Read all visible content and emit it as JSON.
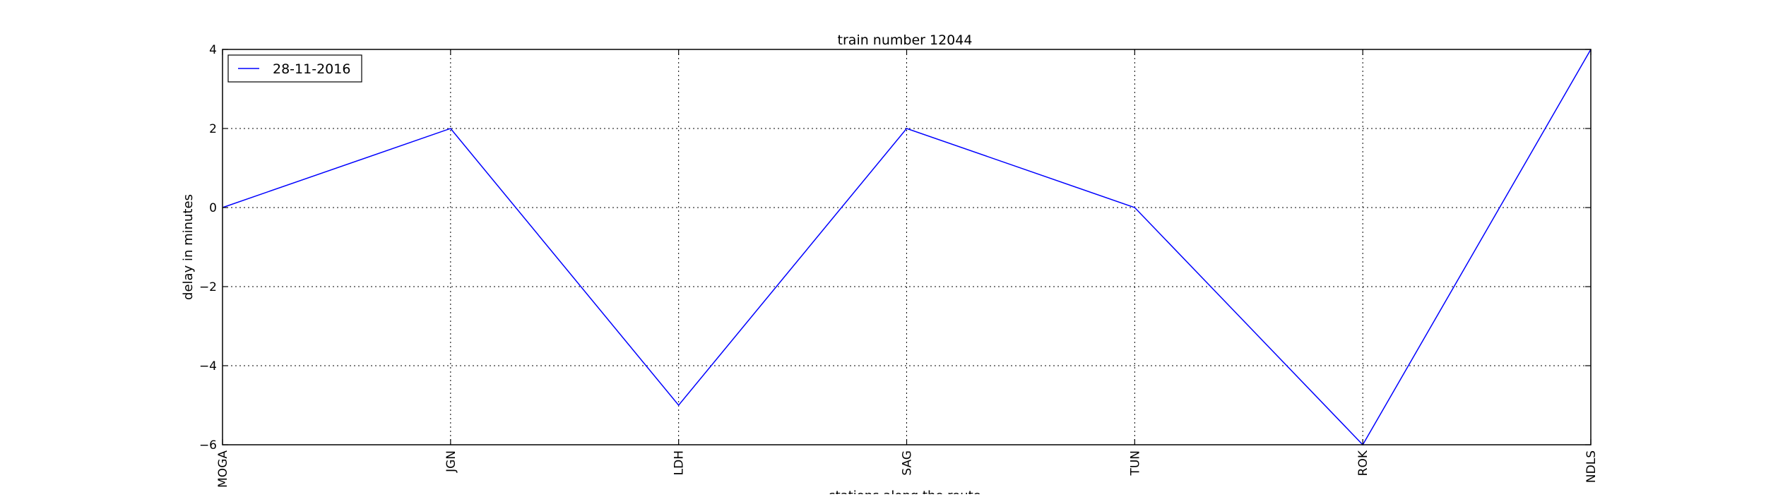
{
  "chart_data": {
    "type": "line",
    "title": "train number 12044",
    "xlabel": "stations along the route",
    "ylabel": "delay in minutes",
    "categories": [
      "MOGA",
      "JGN",
      "LDH",
      "SAG",
      "TUN",
      "ROK",
      "NDLS"
    ],
    "series": [
      {
        "name": "28-11-2016",
        "color": "#0000ff",
        "values": [
          0,
          2,
          -5,
          2,
          0,
          -6,
          4
        ]
      }
    ],
    "ylim": [
      -6,
      4
    ],
    "yticks": [
      -6,
      -4,
      -2,
      0,
      2,
      4
    ],
    "ytick_labels": [
      "−6",
      "−4",
      "−2",
      "0",
      "2",
      "4"
    ],
    "grid": true,
    "legend_position": "top-left"
  }
}
